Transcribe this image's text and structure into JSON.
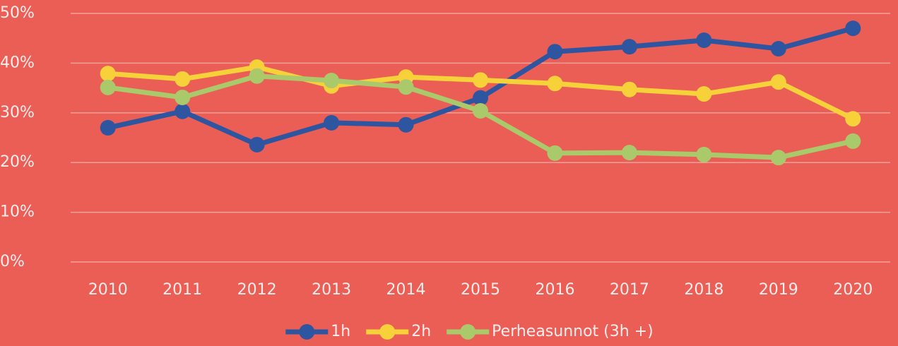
{
  "chart_data": {
    "type": "line",
    "categories": [
      "2010",
      "2011",
      "2012",
      "2013",
      "2014",
      "2015",
      "2016",
      "2017",
      "2018",
      "2019",
      "2020"
    ],
    "series": [
      {
        "name": "1h",
        "color": "#2E55A0",
        "values": [
          27.0,
          30.3,
          23.6,
          28.0,
          27.6,
          33.0,
          42.3,
          43.3,
          44.6,
          42.9,
          47.0
        ]
      },
      {
        "name": "2h",
        "color": "#F7D13A",
        "values": [
          37.9,
          36.8,
          39.2,
          35.4,
          37.2,
          36.6,
          35.9,
          34.7,
          33.8,
          36.2,
          28.8
        ]
      },
      {
        "name": "Perheasunnot (3h +)",
        "color": "#A9C96A",
        "values": [
          35.1,
          33.1,
          37.4,
          36.5,
          35.2,
          30.4,
          21.9,
          22.0,
          21.6,
          21.0,
          24.3
        ]
      }
    ],
    "ylim": [
      0,
      50
    ],
    "yticks": [
      {
        "value": 0,
        "label": "0%"
      },
      {
        "value": 10,
        "label": "10%"
      },
      {
        "value": 20,
        "label": "20%"
      },
      {
        "value": 30,
        "label": "30%"
      },
      {
        "value": 40,
        "label": "40%"
      },
      {
        "value": 50,
        "label": "50%"
      }
    ],
    "grid": true,
    "legend": "bottom"
  }
}
